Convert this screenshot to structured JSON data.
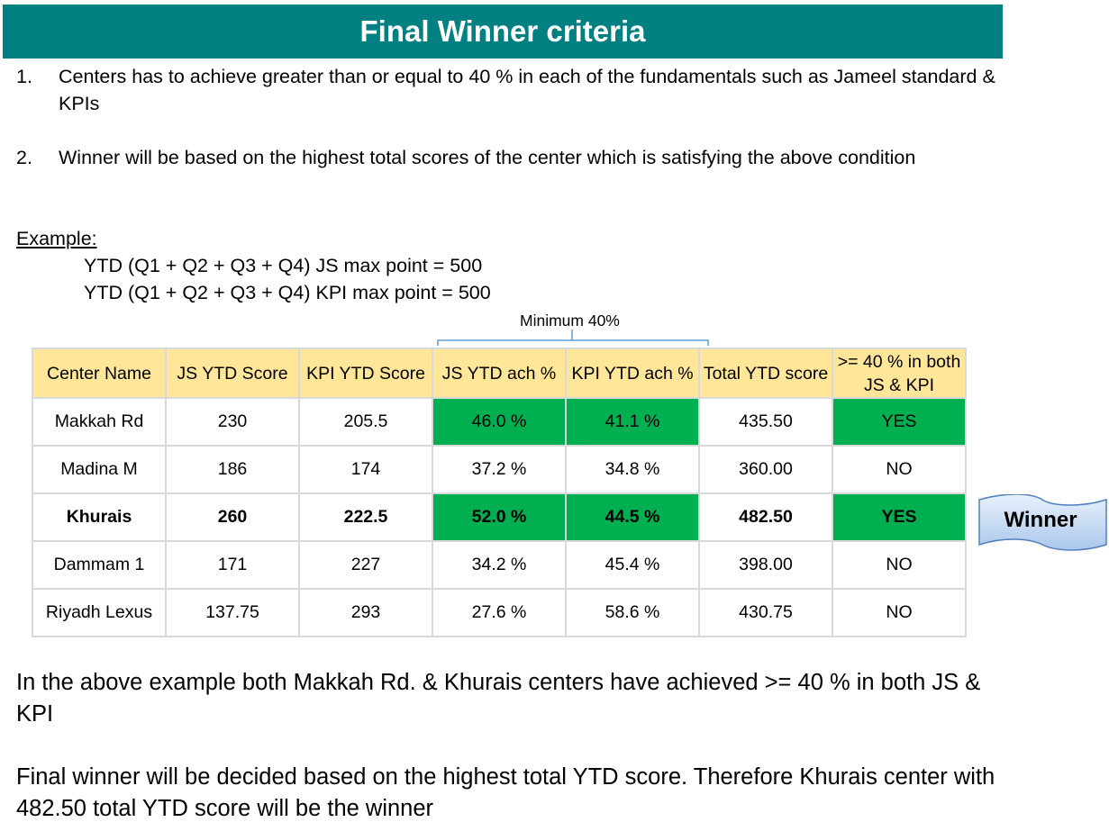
{
  "title": "Final Winner criteria",
  "rules": [
    {
      "num": "1.",
      "text": "Centers has to achieve greater than or equal to 40 %  in each of the fundamentals such as Jameel standard & KPIs"
    },
    {
      "num": "2.",
      "text": "Winner  will be based on the highest total scores of the center which is satisfying the above condition"
    }
  ],
  "example": {
    "label": "Example:",
    "lines": [
      "YTD (Q1 + Q2 + Q3 + Q4) JS max point = 500",
      "YTD (Q1 + Q2 + Q3 + Q4) KPI max point = 500"
    ]
  },
  "minimum_label": "Minimum 40%",
  "table": {
    "headers": [
      "Center Name",
      "JS YTD Score",
      "KPI YTD Score",
      "JS YTD ach %",
      "KPI YTD ach %",
      "Total YTD score",
      ">= 40 %  in both JS & KPI"
    ],
    "rows": [
      [
        "Makkah Rd",
        "230",
        "205.5",
        "46.0 %",
        "41.1 %",
        "435.50",
        "YES"
      ],
      [
        "Madina M",
        "186",
        "174",
        "37.2 %",
        "34.8 %",
        "360.00",
        "NO"
      ],
      [
        "Khurais",
        "260",
        "222.5",
        "52.0 %",
        "44.5 %",
        "482.50",
        "YES"
      ],
      [
        "Dammam 1",
        "171",
        "227",
        "34.2 %",
        "45.4 %",
        "398.00",
        "NO"
      ],
      [
        "Riyadh Lexus",
        "137.75",
        "293",
        "27.6 %",
        "58.6 %",
        "430.75",
        "NO"
      ]
    ]
  },
  "winner_label": "Winner",
  "footer": [
    "In the above example both Makkah Rd. & Khurais centers have achieved >= 40 %  in both JS & KPI",
    "Final winner will be decided based on the highest total YTD score. Therefore Khurais center with 482.50 total YTD score will be the winner"
  ],
  "colors": {
    "title_bg": "#008080",
    "header_bg": "#ffe699",
    "pass_green": "#00b050",
    "grid": "#d9d9d9"
  }
}
